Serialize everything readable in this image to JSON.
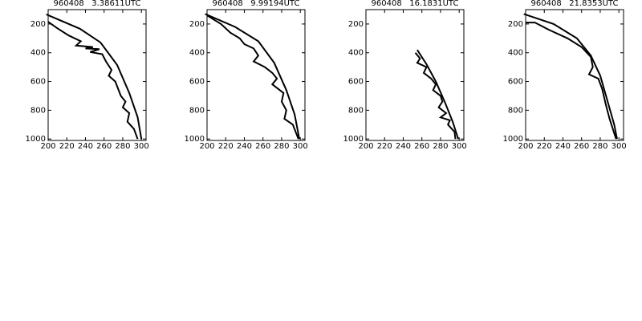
{
  "chart_data": [
    {
      "type": "line",
      "title": "960408   3.38611UTC",
      "xlim": [
        200,
        305
      ],
      "xticks": [
        200,
        220,
        240,
        260,
        280,
        300
      ],
      "ylim": [
        1010,
        100
      ],
      "yticks": [
        200,
        400,
        600,
        800,
        1000
      ],
      "series": [
        {
          "color": "#000000",
          "x": [
            198,
            234,
            256,
            274,
            287,
            296,
            300
          ],
          "values": [
            133,
            233,
            328,
            485,
            680,
            848,
            1000
          ]
        },
        {
          "color": "#000000",
          "x": [
            200,
            210,
            222,
            235,
            230,
            248,
            240,
            255,
            245,
            258,
            262,
            268,
            265,
            272,
            275,
            278,
            283,
            280,
            287,
            285,
            292,
            296
          ],
          "values": [
            185,
            230,
            280,
            320,
            350,
            360,
            370,
            375,
            395,
            410,
            460,
            520,
            560,
            600,
            650,
            700,
            740,
            780,
            820,
            880,
            930,
            1000
          ]
        }
      ]
    },
    {
      "type": "line",
      "title": "960408   9.99194UTC",
      "xlim": [
        200,
        305
      ],
      "xticks": [
        200,
        220,
        240,
        260,
        280,
        300
      ],
      "ylim": [
        1010,
        100
      ],
      "yticks": [
        200,
        400,
        600,
        800,
        1000
      ],
      "series": [
        {
          "color": "#000000",
          "x": [
            198,
            230,
            255,
            272,
            285,
            294,
            299
          ],
          "values": [
            130,
            220,
            320,
            470,
            660,
            830,
            1000
          ]
        },
        {
          "color": "#000000",
          "x": [
            200,
            215,
            225,
            235,
            240,
            250,
            255,
            250,
            262,
            270,
            275,
            270,
            282,
            280,
            285,
            283,
            292,
            298
          ],
          "values": [
            140,
            200,
            260,
            300,
            340,
            370,
            420,
            460,
            500,
            540,
            580,
            620,
            680,
            740,
            800,
            860,
            900,
            1000
          ]
        }
      ]
    },
    {
      "type": "line",
      "title": "960408   16.1831UTC",
      "xlim": [
        200,
        305
      ],
      "xticks": [
        200,
        220,
        240,
        260,
        280,
        300
      ],
      "ylim": [
        1010,
        100
      ],
      "yticks": [
        200,
        400,
        600,
        800,
        1000
      ],
      "series": [
        {
          "color": "#000000",
          "x": [
            255,
            265,
            275,
            285,
            293,
            299
          ],
          "values": [
            380,
            480,
            600,
            750,
            880,
            1000
          ]
        },
        {
          "color": "#000000",
          "x": [
            253,
            258,
            255,
            265,
            262,
            270,
            275,
            272,
            280,
            282,
            278,
            286,
            280,
            290,
            288,
            295,
            296
          ],
          "values": [
            400,
            440,
            470,
            500,
            540,
            580,
            620,
            660,
            700,
            740,
            780,
            820,
            850,
            870,
            900,
            950,
            1000
          ]
        }
      ]
    },
    {
      "type": "line",
      "title": "960408   21.8353UTC",
      "xlim": [
        200,
        305
      ],
      "xticks": [
        200,
        220,
        240,
        260,
        280,
        300
      ],
      "ylim": [
        1010,
        100
      ],
      "yticks": [
        200,
        400,
        600,
        800,
        1000
      ],
      "series": [
        {
          "color": "#000000",
          "x": [
            198,
            230,
            255,
            270,
            280,
            288,
            295,
            298
          ],
          "values": [
            130,
            200,
            300,
            420,
            560,
            740,
            900,
            1000
          ]
        },
        {
          "color": "#000000",
          "x": [
            200,
            210,
            225,
            245,
            260,
            270,
            272,
            268,
            278,
            282,
            286,
            290,
            297
          ],
          "values": [
            190,
            190,
            240,
            300,
            360,
            430,
            500,
            550,
            580,
            650,
            760,
            860,
            1000
          ]
        }
      ]
    }
  ]
}
